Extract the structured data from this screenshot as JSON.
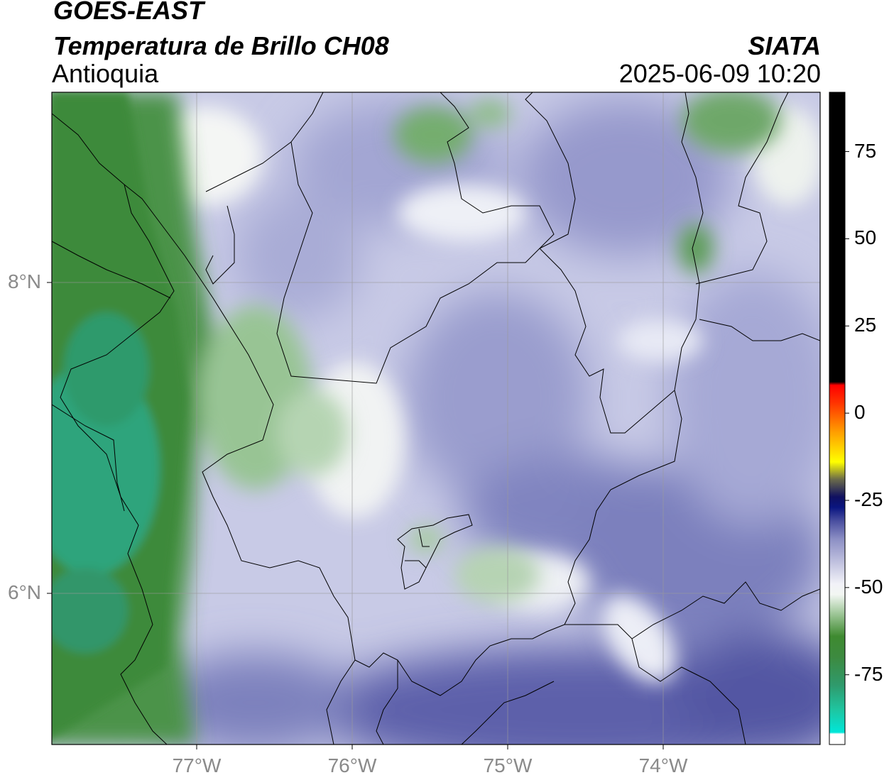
{
  "header": {
    "satellite": "GOES-EAST",
    "product": "Temperatura de Brillo CH08",
    "region": "Antioquia",
    "organization": "SIATA",
    "datetime": "2025-06-09 10:20"
  },
  "axes": {
    "lat_labels": [
      "8°N",
      "6°N"
    ],
    "lon_labels": [
      "77°W",
      "76°W",
      "75°W",
      "74°W"
    ]
  },
  "colorbar": {
    "ticks": [
      "75",
      "50",
      "25",
      "0",
      "-25",
      "-50",
      "-75"
    ],
    "range": [
      -95,
      92
    ],
    "stops": [
      {
        "v": -95,
        "c": "#ffffff"
      },
      {
        "v": -92,
        "c": "#ffffff"
      },
      {
        "v": -91.5,
        "c": "#00e6d8"
      },
      {
        "v": -85,
        "c": "#1fc5a0"
      },
      {
        "v": -78,
        "c": "#2f9a6c"
      },
      {
        "v": -70,
        "c": "#3d8a40"
      },
      {
        "v": -64,
        "c": "#3e8a30"
      },
      {
        "v": -57,
        "c": "#a6cba0"
      },
      {
        "v": -52,
        "c": "#f2f6f2"
      },
      {
        "v": -49,
        "c": "#f2f2f8"
      },
      {
        "v": -43,
        "c": "#c2c3e0"
      },
      {
        "v": -36,
        "c": "#8b8ec4"
      },
      {
        "v": -31,
        "c": "#4b50a0"
      },
      {
        "v": -27,
        "c": "#0a1580"
      },
      {
        "v": -24,
        "c": "#101060"
      },
      {
        "v": -19,
        "c": "#6a6a4a"
      },
      {
        "v": -14,
        "c": "#ffff00"
      },
      {
        "v": -5,
        "c": "#ff9900"
      },
      {
        "v": 3,
        "c": "#ff3300"
      },
      {
        "v": 8,
        "c": "#ff0000"
      },
      {
        "v": 9,
        "c": "#000000"
      },
      {
        "v": 92,
        "c": "#000000"
      }
    ]
  },
  "style": {
    "green_dark": "#3d8a3a",
    "green_teal": "#2aa37a",
    "lavender": "#8f93c9",
    "lavender_light": "#c5c8e6",
    "blue_dark": "#5b5ea8"
  }
}
